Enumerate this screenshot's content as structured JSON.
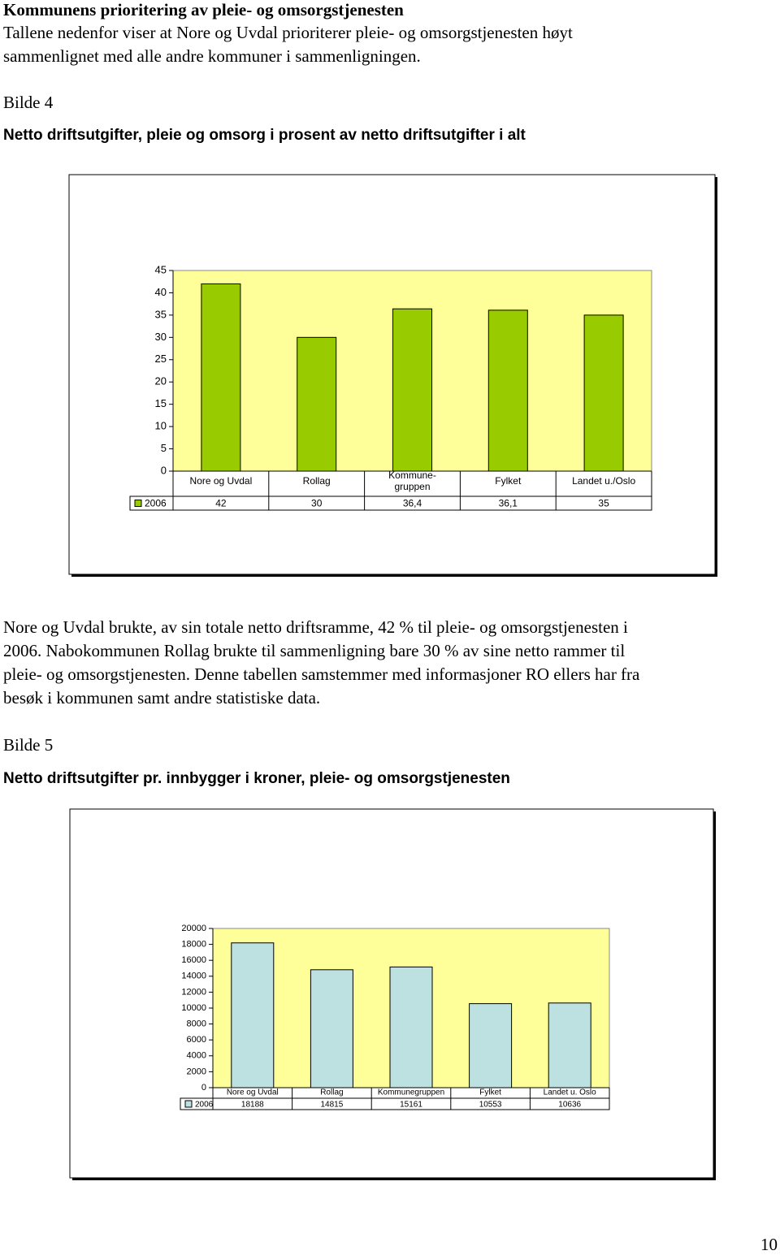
{
  "heading": "Kommunens prioritering av pleie- og omsorgstjenesten",
  "intro": [
    "Tallene nedenfor viser at Nore og Uvdal prioriterer pleie- og omsorgstjenesten høyt",
    "sammenlignet med alle andre kommuner i sammenligningen."
  ],
  "caption_1": "Bilde 4",
  "paragraph": [
    "Nore og Uvdal brukte, av sin totale netto driftsramme, 42 % til pleie- og omsorgstjenesten i",
    "2006. Nabokommunen Rollag brukte til sammenligning bare 30 % av sine netto rammer til",
    "pleie- og omsorgstjenesten. Denne tabellen samstemmer med informasjoner RO ellers har fra",
    "besøk i kommunen samt andre statistiske data."
  ],
  "caption_2": "Bilde 5",
  "page_number": "10",
  "chart_data": [
    {
      "type": "bar",
      "title": "Netto driftsutgifter, pleie og omsorg i prosent av netto driftsutgifter i alt",
      "categories": [
        "Nore og Uvdal",
        "Rollag",
        "Kommune-\ngruppen",
        "Fylket",
        "Landet u./Oslo"
      ],
      "series": [
        {
          "name": "2006",
          "color": "#99cc00",
          "values": [
            42,
            30,
            36.4,
            36.1,
            35
          ],
          "value_labels": [
            "42",
            "30",
            "36,4",
            "36,1",
            "35"
          ]
        }
      ],
      "ylim": [
        0,
        45
      ],
      "yticks": [
        0,
        5,
        10,
        15,
        20,
        25,
        30,
        35,
        40,
        45
      ],
      "plot_background": "#ffff99"
    },
    {
      "type": "bar",
      "title": "Netto driftsutgifter pr. innbygger i kroner, pleie- og omsorgstjenesten",
      "categories": [
        "Nore og Uvdal",
        "Rollag",
        "Kommunegruppen",
        "Fylket",
        "Landet u. Oslo"
      ],
      "series": [
        {
          "name": "2006",
          "color": "#bde0e0",
          "values": [
            18188,
            14815,
            15161,
            10553,
            10636
          ]
        }
      ],
      "ylim": [
        0,
        20000
      ],
      "yticks": [
        0,
        2000,
        4000,
        6000,
        8000,
        10000,
        12000,
        14000,
        16000,
        18000,
        20000
      ],
      "plot_background": "#ffff99"
    }
  ]
}
